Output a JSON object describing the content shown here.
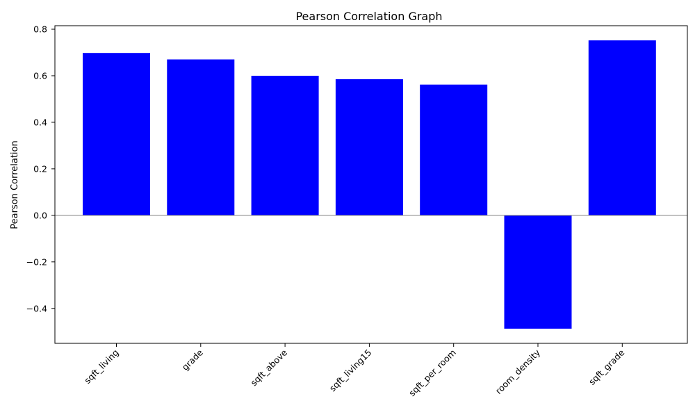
{
  "chart_data": {
    "type": "bar",
    "title": "Pearson Correlation Graph",
    "xlabel": "",
    "ylabel": "Pearson Correlation",
    "categories": [
      "sqft_living",
      "grade",
      "sqft_above",
      "sqft_living15",
      "sqft_per_room",
      "room_density",
      "sqft_grade"
    ],
    "values": [
      0.698,
      0.67,
      0.6,
      0.585,
      0.562,
      -0.487,
      0.752
    ],
    "ylim": [
      -0.55,
      0.815
    ],
    "yticks": [
      -0.4,
      -0.2,
      0.0,
      0.2,
      0.4,
      0.6,
      0.8
    ],
    "ytick_labels": [
      "−0.4",
      "−0.2",
      "0.0",
      "0.2",
      "0.4",
      "0.6",
      "0.8"
    ],
    "bar_color": "#0000ff",
    "zero_line_color": "#808080",
    "grid": false,
    "xtick_rotation_deg": 45
  }
}
